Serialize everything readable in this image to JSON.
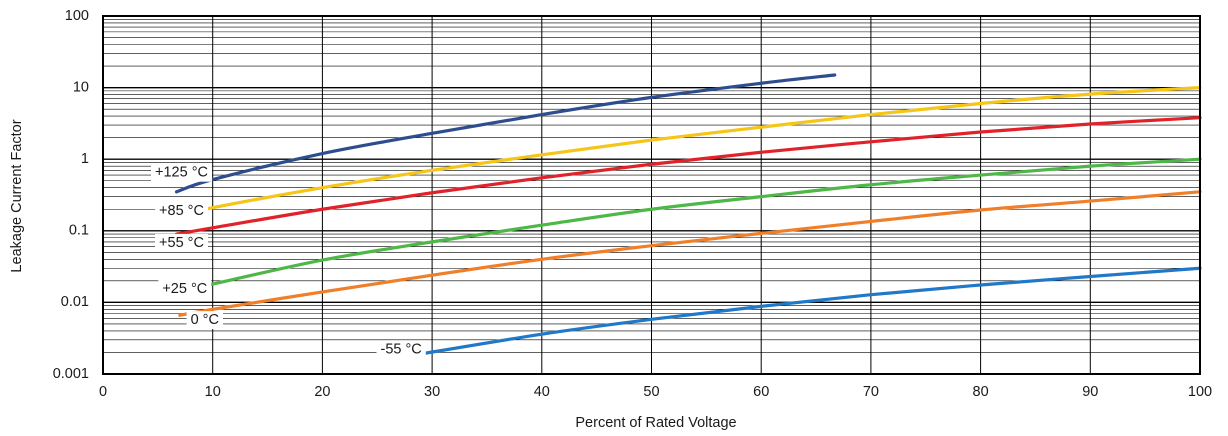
{
  "chart_data": {
    "type": "line",
    "title": "",
    "xlabel": "Percent of Rated Voltage",
    "ylabel": "Leakage Current Factor",
    "xlim": [
      0,
      100
    ],
    "ylim": [
      0.001,
      100
    ],
    "yscale": "log",
    "grid": true,
    "legend": "inline labels at left end of each curve",
    "x_ticks": [
      "0",
      "10",
      "20",
      "30",
      "40",
      "50",
      "60",
      "70",
      "80",
      "90",
      "100"
    ],
    "y_ticks": [
      "0.001",
      "0.01",
      "0.1",
      "1",
      "10",
      "100"
    ],
    "series": [
      {
        "name": "+125 °C",
        "color": "#2e4d8f",
        "x": [
          6.7,
          10,
          20,
          30,
          40,
          50,
          60,
          66.7
        ],
        "y": [
          0.35,
          0.52,
          1.2,
          2.3,
          4.2,
          7.3,
          11.5,
          15
        ]
      },
      {
        "name": "+85 °C",
        "color": "#f5c518",
        "x": [
          6.7,
          10,
          20,
          30,
          40,
          50,
          60,
          70,
          80,
          90,
          100
        ],
        "y": [
          0.16,
          0.21,
          0.4,
          0.7,
          1.15,
          1.85,
          2.8,
          4.2,
          6.0,
          8.1,
          10
        ]
      },
      {
        "name": "+55 °C",
        "color": "#e0232a",
        "x": [
          6.7,
          10,
          20,
          30,
          40,
          50,
          60,
          70,
          80,
          90,
          100
        ],
        "y": [
          0.09,
          0.11,
          0.2,
          0.34,
          0.55,
          0.85,
          1.25,
          1.75,
          2.4,
          3.1,
          3.8
        ]
      },
      {
        "name": "+25 °C",
        "color": "#4db848",
        "x": [
          7,
          10,
          20,
          30,
          40,
          50,
          60,
          70,
          80,
          90,
          100
        ],
        "y": [
          0.014,
          0.018,
          0.039,
          0.07,
          0.12,
          0.2,
          0.3,
          0.44,
          0.6,
          0.8,
          1.0
        ]
      },
      {
        "name": "0 °C",
        "color": "#f07f2a",
        "x": [
          7,
          10,
          20,
          30,
          40,
          50,
          60,
          70,
          80,
          90,
          100
        ],
        "y": [
          0.0066,
          0.008,
          0.014,
          0.024,
          0.04,
          0.062,
          0.092,
          0.135,
          0.195,
          0.26,
          0.35
        ]
      },
      {
        "name": "-55 °C",
        "color": "#1f78c8",
        "x": [
          28,
          40,
          50,
          60,
          70,
          80,
          90,
          100
        ],
        "y": [
          0.0018,
          0.0036,
          0.0058,
          0.0088,
          0.0128,
          0.0175,
          0.023,
          0.03
        ]
      }
    ]
  }
}
